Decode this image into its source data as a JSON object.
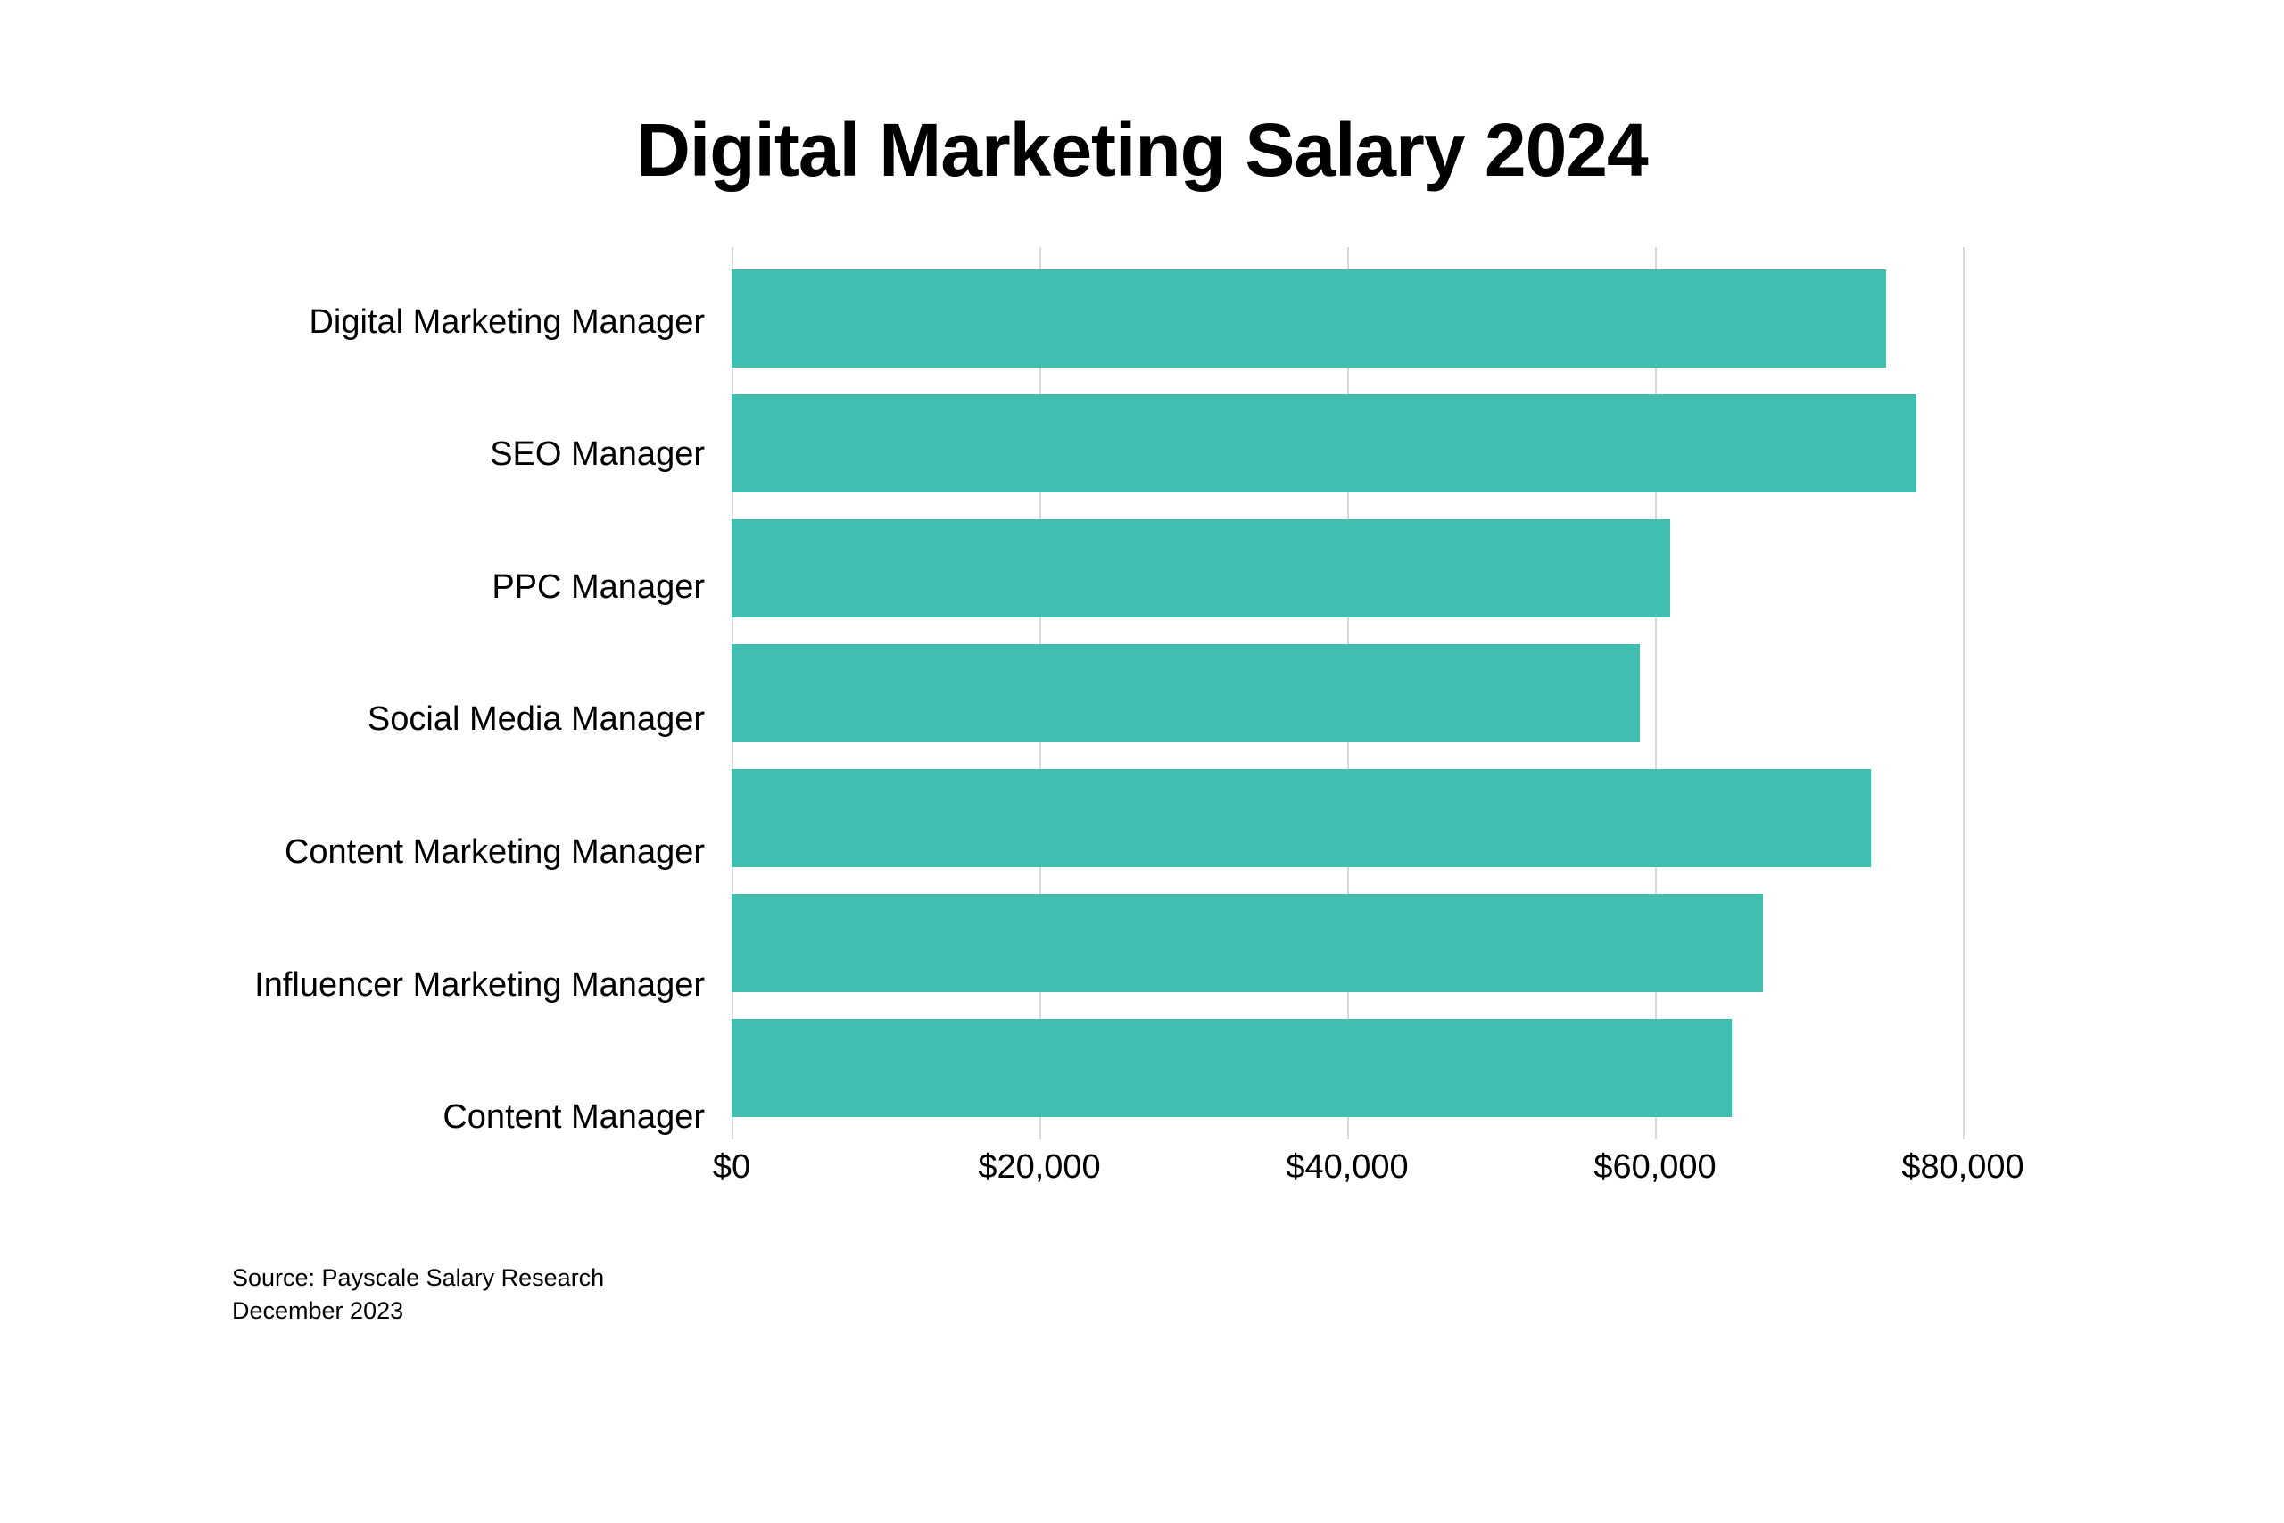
{
  "chart": {
    "type": "bar_horizontal",
    "title": "Digital Marketing Salary 2024",
    "title_fontsize": 84,
    "title_color": "#000000",
    "background_color": "#ffffff",
    "bar_color": "#41beb0",
    "grid_color": "#d9d9d9",
    "label_color": "#000000",
    "y_label_fontsize": 38,
    "x_label_fontsize": 38,
    "bar_height_ratio": 0.78,
    "xmin": 0,
    "xmax": 80000,
    "xtick_step": 20000,
    "xticks": [
      {
        "value": 0,
        "label": "$0"
      },
      {
        "value": 20000,
        "label": "$20,000"
      },
      {
        "value": 40000,
        "label": "$40,000"
      },
      {
        "value": 60000,
        "label": "$60,000"
      },
      {
        "value": 80000,
        "label": "$80,000"
      }
    ],
    "categories": [
      {
        "label": "Digital Marketing Manager",
        "value": 75000
      },
      {
        "label": "SEO Manager",
        "value": 77000
      },
      {
        "label": "PPC Manager",
        "value": 61000
      },
      {
        "label": "Social Media Manager",
        "value": 59000
      },
      {
        "label": "Content Marketing Manager",
        "value": 74000
      },
      {
        "label": "Influencer Marketing Manager",
        "value": 67000
      },
      {
        "label": "Content Manager",
        "value": 65000
      }
    ],
    "source_line1": "Source: Payscale Salary Research",
    "source_line2": "December 2023",
    "source_fontsize": 27
  }
}
